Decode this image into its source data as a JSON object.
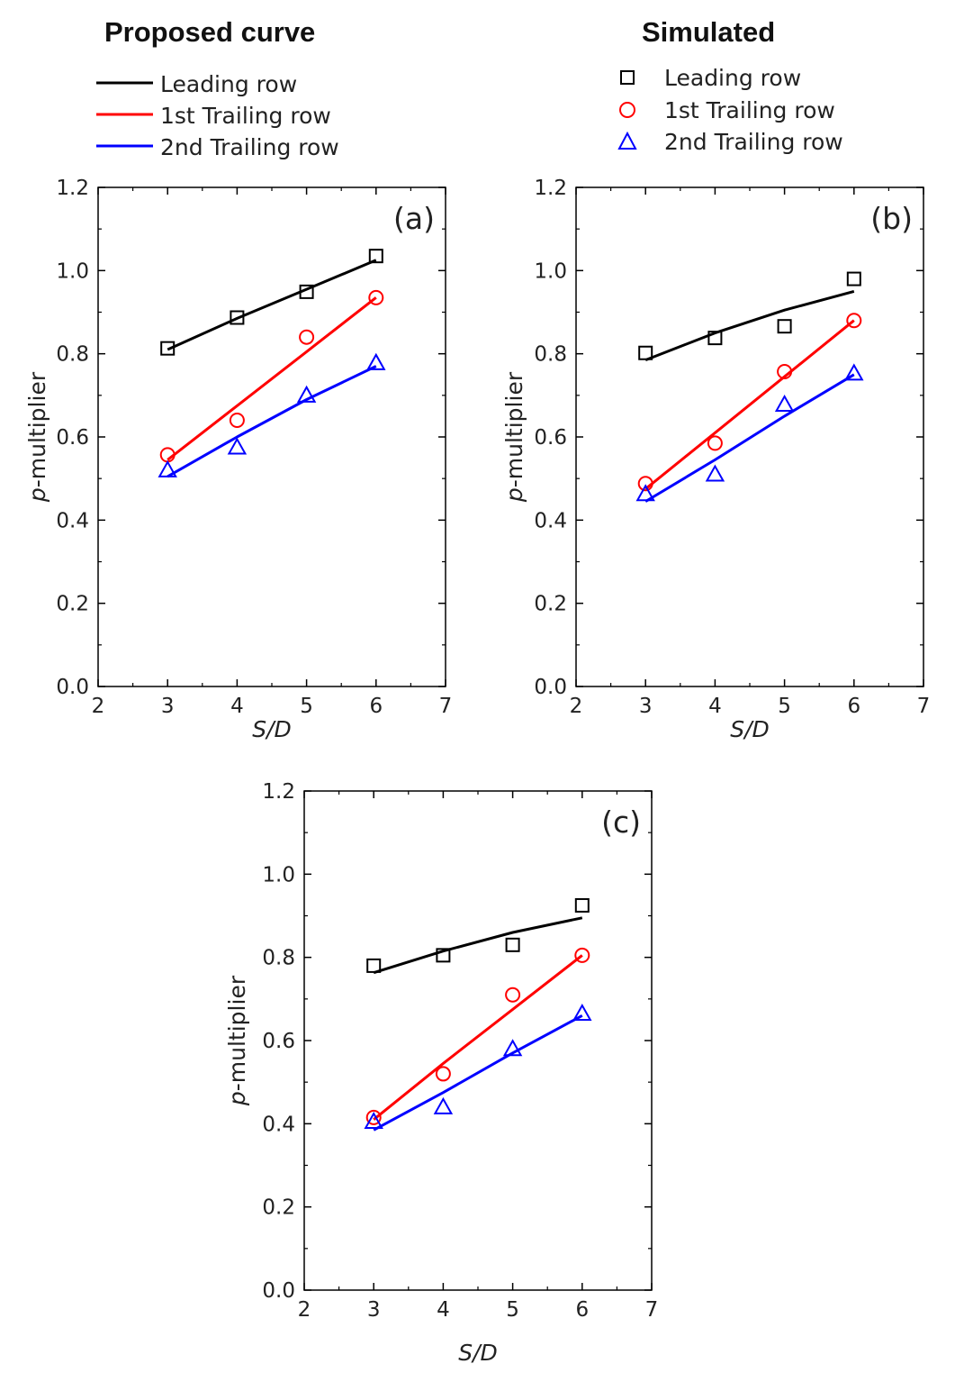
{
  "legend": {
    "proposed_title": "Proposed curve",
    "simulated_title": "Simulated",
    "entries": [
      {
        "label": "Leading row",
        "color": "#000000",
        "marker": "square"
      },
      {
        "label": "1st Trailing row",
        "color": "#ff0000",
        "marker": "circle"
      },
      {
        "label": "2nd Trailing row",
        "color": "#0000ff",
        "marker": "triangle"
      }
    ]
  },
  "chart_data": [
    {
      "type": "line",
      "panel_label": "(a)",
      "xlabel": "S/D",
      "ylabel_italic": "p",
      "ylabel_rest": "-multiplier",
      "xlim": [
        2,
        7
      ],
      "ylim": [
        0,
        1.2
      ],
      "x_ticks": [
        2,
        3,
        4,
        5,
        6,
        7
      ],
      "y_ticks": [
        "0.0",
        "0.2",
        "0.4",
        "0.6",
        "0.8",
        "1.0",
        "1.2"
      ],
      "x": [
        3,
        4,
        5,
        6
      ],
      "series": [
        {
          "name": "Leading row",
          "curve": [
            0.81,
            0.885,
            0.955,
            1.025
          ],
          "simulated": [
            0.813,
            0.887,
            0.949,
            1.035
          ]
        },
        {
          "name": "1st Trailing row",
          "curve": [
            0.545,
            0.675,
            0.805,
            0.935
          ],
          "simulated": [
            0.557,
            0.64,
            0.84,
            0.935
          ]
        },
        {
          "name": "2nd Trailing row",
          "curve": [
            0.505,
            0.6,
            0.69,
            0.77
          ],
          "simulated": [
            0.52,
            0.575,
            0.7,
            0.778
          ]
        }
      ]
    },
    {
      "type": "line",
      "panel_label": "(b)",
      "xlabel": "S/D",
      "ylabel_italic": "p",
      "ylabel_rest": "-multiplier",
      "xlim": [
        2,
        7
      ],
      "ylim": [
        0,
        1.2
      ],
      "x_ticks": [
        2,
        3,
        4,
        5,
        6,
        7
      ],
      "y_ticks": [
        "0.0",
        "0.2",
        "0.4",
        "0.6",
        "0.8",
        "1.0",
        "1.2"
      ],
      "x": [
        3,
        4,
        5,
        6
      ],
      "series": [
        {
          "name": "Leading row",
          "curve": [
            0.785,
            0.85,
            0.905,
            0.95
          ],
          "simulated": [
            0.802,
            0.838,
            0.866,
            0.98
          ]
        },
        {
          "name": "1st Trailing row",
          "curve": [
            0.475,
            0.61,
            0.745,
            0.88
          ],
          "simulated": [
            0.488,
            0.585,
            0.757,
            0.88
          ]
        },
        {
          "name": "2nd Trailing row",
          "curve": [
            0.445,
            0.545,
            0.65,
            0.75
          ],
          "simulated": [
            0.463,
            0.51,
            0.678,
            0.753
          ]
        }
      ]
    },
    {
      "type": "line",
      "panel_label": "(c)",
      "xlabel": "S/D",
      "ylabel_italic": "p",
      "ylabel_rest": "-multiplier",
      "xlim": [
        2,
        7
      ],
      "ylim": [
        0,
        1.2
      ],
      "x_ticks": [
        2,
        3,
        4,
        5,
        6,
        7
      ],
      "y_ticks": [
        "0.0",
        "0.2",
        "0.4",
        "0.6",
        "0.8",
        "1.0",
        "1.2"
      ],
      "x": [
        3,
        4,
        5,
        6
      ],
      "series": [
        {
          "name": "Leading row",
          "curve": [
            0.763,
            0.815,
            0.86,
            0.895
          ],
          "simulated": [
            0.78,
            0.805,
            0.83,
            0.925
          ]
        },
        {
          "name": "1st Trailing row",
          "curve": [
            0.41,
            0.545,
            0.675,
            0.805
          ],
          "simulated": [
            0.415,
            0.52,
            0.71,
            0.805
          ]
        },
        {
          "name": "2nd Trailing row",
          "curve": [
            0.385,
            0.475,
            0.57,
            0.66
          ],
          "simulated": [
            0.405,
            0.44,
            0.58,
            0.665
          ]
        }
      ]
    }
  ]
}
